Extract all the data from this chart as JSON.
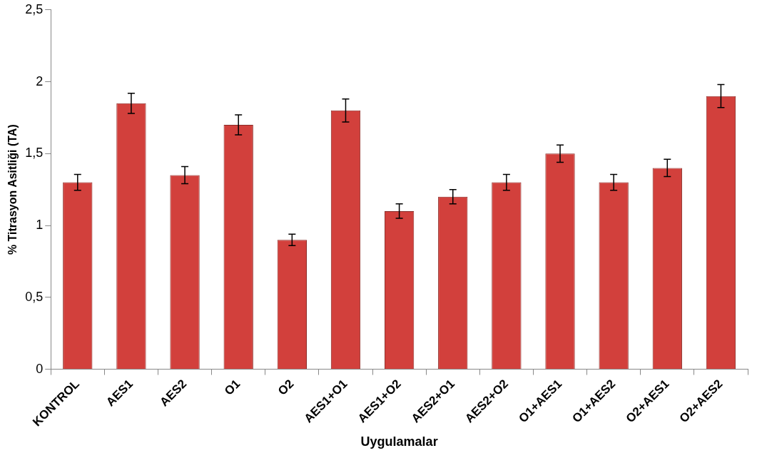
{
  "chart_data": {
    "type": "bar",
    "xlabel": "Uygulamalar",
    "ylabel": "% Titrasyon Asitliği (TA)",
    "categories": [
      "KONTROL",
      "AES1",
      "AES2",
      "O1",
      "O2",
      "AES1+O1",
      "AES1+O2",
      "AES2+O1",
      "AES2+O2",
      "O1+AES1",
      "O1+AES2",
      "O2+AES1",
      "O2+AES2"
    ],
    "values": [
      1.3,
      1.85,
      1.35,
      1.7,
      0.9,
      1.8,
      1.1,
      1.2,
      1.3,
      1.5,
      1.3,
      1.4,
      1.9
    ],
    "errors": [
      0.055,
      0.07,
      0.06,
      0.07,
      0.04,
      0.08,
      0.05,
      0.05,
      0.055,
      0.06,
      0.055,
      0.06,
      0.08
    ],
    "color": "#d2403c",
    "ylim": [
      0,
      2.5
    ],
    "yticks": [
      0,
      {
        "value": 0.5,
        "label": "0,5"
      },
      1,
      {
        "value": 1.5,
        "label": "1,5"
      },
      2,
      {
        "value": 2.5,
        "label": "2,5"
      }
    ],
    "grid": false,
    "legend": false
  }
}
